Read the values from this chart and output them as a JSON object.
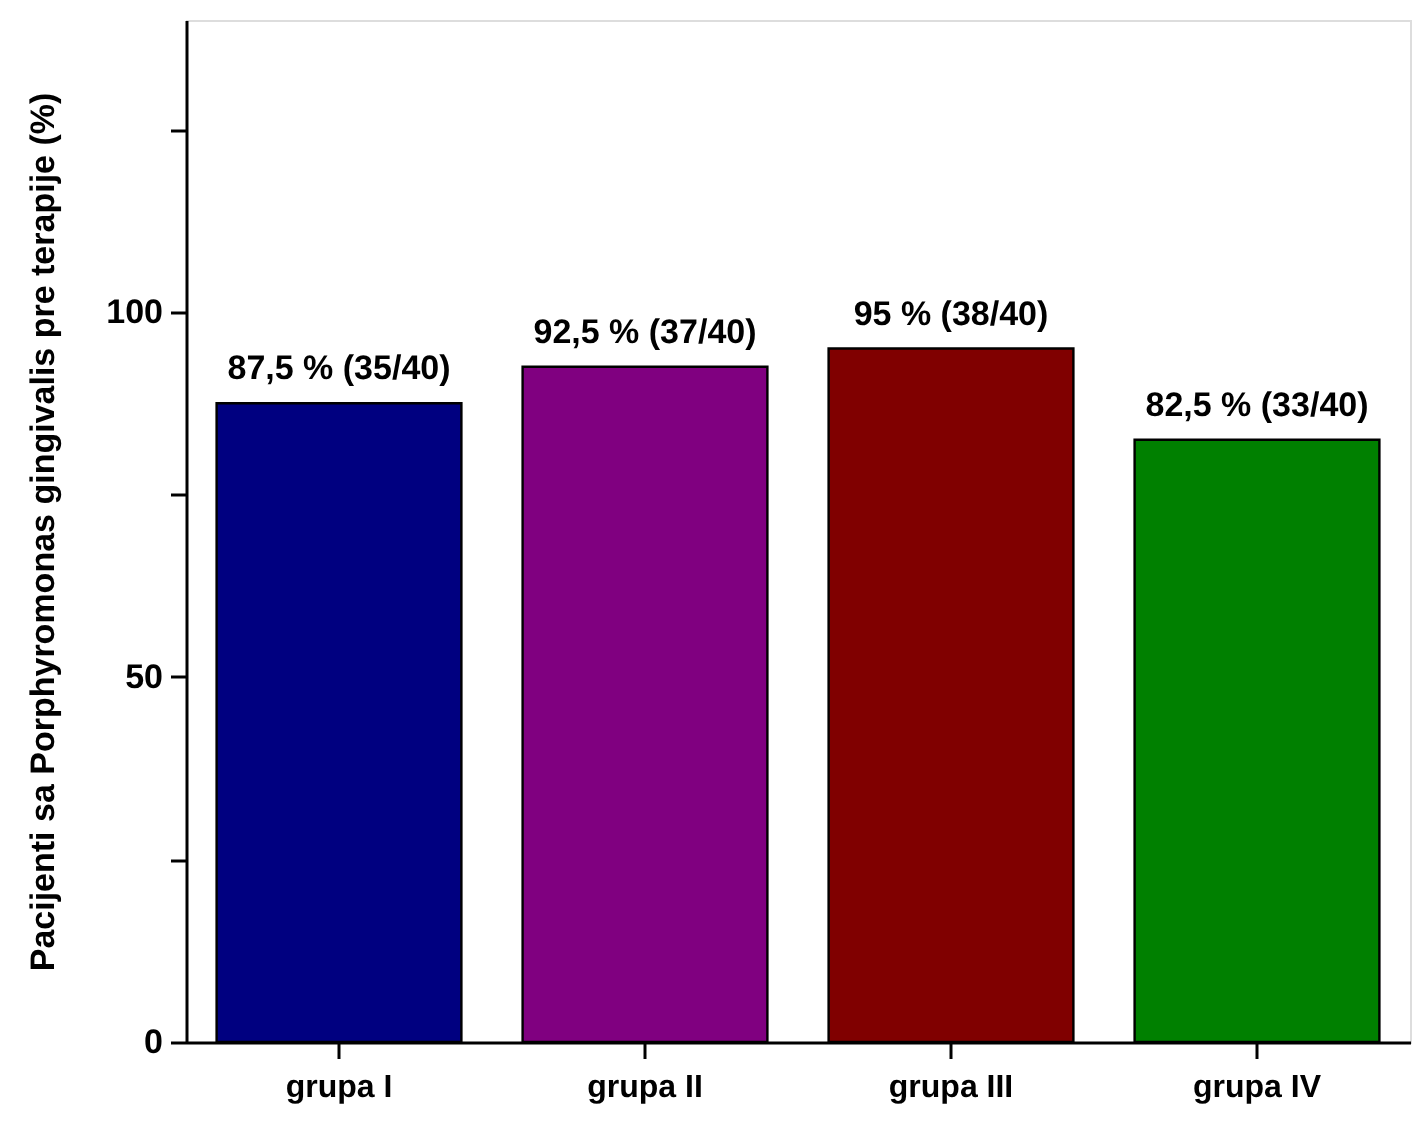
{
  "chart_data": {
    "type": "bar",
    "ylabel": "Pacijenti sa Porphyromonas gingivalis pre terapije (%)",
    "categories": [
      "grupa I",
      "grupa II",
      "grupa III",
      "grupa IV"
    ],
    "values": [
      87.5,
      92.5,
      95,
      82.5
    ],
    "colors": [
      "#000080",
      "#800080",
      "#800000",
      "#008000"
    ],
    "value_labels": [
      "87,5 % (35/40)",
      "92,5 % (37/40)",
      "95 % (38/40)",
      "82,5 % (33/40)"
    ],
    "ylim": [
      0,
      140
    ],
    "yticks": [
      0,
      {
        "value": 25,
        "label": null
      },
      50,
      {
        "value": 75,
        "label": null
      },
      100,
      {
        "value": 125,
        "label": null
      }
    ]
  }
}
